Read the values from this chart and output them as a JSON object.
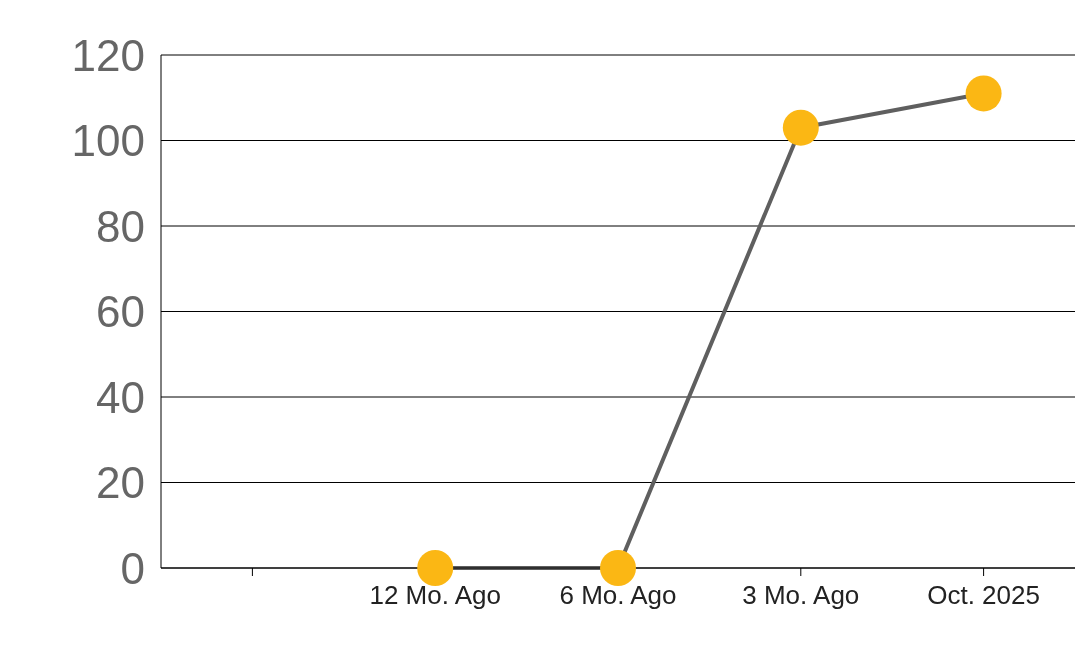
{
  "chart_data": {
    "type": "line",
    "categories": [
      null,
      "12 Mo. Ago",
      "6 Mo. Ago",
      "3 Mo. Ago",
      "Oct. 2025"
    ],
    "series": [
      {
        "color": "#5f5f5f",
        "values": [
          null,
          0,
          0,
          103,
          111
        ]
      }
    ],
    "ylim": [
      0,
      120
    ],
    "yticks": [
      0,
      20,
      40,
      60,
      80,
      100,
      120
    ],
    "grid": "y",
    "marker": "circle",
    "line_style": "solid"
  }
}
